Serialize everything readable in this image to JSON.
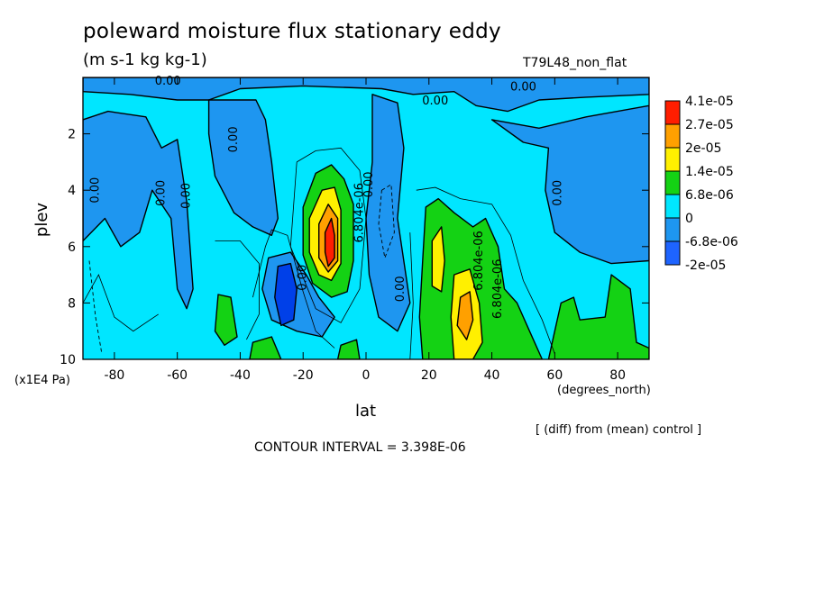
{
  "header": {
    "title": "poleward moisture flux stationary eddy",
    "units": "(m s-1 kg kg-1)",
    "experiment": "T79L48_non_flat"
  },
  "footer": {
    "scale_note": "(x1E4 Pa)",
    "x_units": "(degrees_north)",
    "x_label": "lat",
    "diff_note": "[ (diff) from (mean) control ]",
    "contour_interval": "CONTOUR INTERVAL = 3.398E-06"
  },
  "colors": {
    "band_neg2": "#1e64ff",
    "band_neg1": "#1e96f0",
    "band_0": "#00e6ff",
    "band_1": "#14d214",
    "band_2": "#fff000",
    "band_3": "#ffa000",
    "band_4": "#ff1e00",
    "strong_neg": "#0040e8"
  },
  "chart_data": {
    "type": "heatmap",
    "title": "poleward moisture flux stationary eddy",
    "xlabel": "lat",
    "ylabel": "plev",
    "xlim": [
      -90,
      90
    ],
    "ylim": [
      10,
      0
    ],
    "xticks": [
      -80,
      -60,
      -40,
      -20,
      0,
      20,
      40,
      60,
      80
    ],
    "yticks": [
      2,
      4,
      6,
      8,
      10
    ],
    "colorbar": {
      "labels": [
        "4.1e-05",
        "2.7e-05",
        "2e-05",
        "1.4e-05",
        "6.8e-06",
        "0",
        "-6.8e-06",
        "-2e-05"
      ],
      "colors": [
        "#ff1e00",
        "#ffa000",
        "#fff000",
        "#14d214",
        "#00e6ff",
        "#1e96f0",
        "#1e64ff"
      ]
    },
    "contour_labels": [
      {
        "text": "0.00",
        "x": -63,
        "y": 0.15
      },
      {
        "text": "0.00",
        "x": 22,
        "y": 0.85
      },
      {
        "text": "0.00",
        "x": 50,
        "y": 0.35
      },
      {
        "text": "0.00",
        "x": -42,
        "y": 2.2
      },
      {
        "text": "0.00",
        "x": -86,
        "y": 4.0
      },
      {
        "text": "0.00",
        "x": -65,
        "y": 4.1
      },
      {
        "text": "0.00",
        "x": -57,
        "y": 4.2
      },
      {
        "text": "0.00",
        "x": 1,
        "y": 3.8
      },
      {
        "text": "0.00",
        "x": 61,
        "y": 4.1
      },
      {
        "text": "0.00",
        "x": 11,
        "y": 7.5
      },
      {
        "text": "0.00",
        "x": -20,
        "y": 7.1
      },
      {
        "text": "6.804e-06",
        "x": -2,
        "y": 4.8
      },
      {
        "text": "6.804e-06",
        "x": 36,
        "y": 6.5
      },
      {
        "text": "6.804e-06",
        "x": 42,
        "y": 7.5
      }
    ],
    "features": [
      {
        "kind": "positive maximum",
        "lat": -11,
        "plev": 6,
        "band": "4.1e-05"
      },
      {
        "kind": "negative minimum",
        "lat": -25,
        "plev": 7.8,
        "band": "-2e-05"
      },
      {
        "kind": "positive maximum",
        "lat": 31,
        "plev": 8.3,
        "band": "2e-05"
      },
      {
        "kind": "positive region",
        "lat": 65,
        "plev": 8.5,
        "band": "6.8e-06"
      }
    ]
  }
}
